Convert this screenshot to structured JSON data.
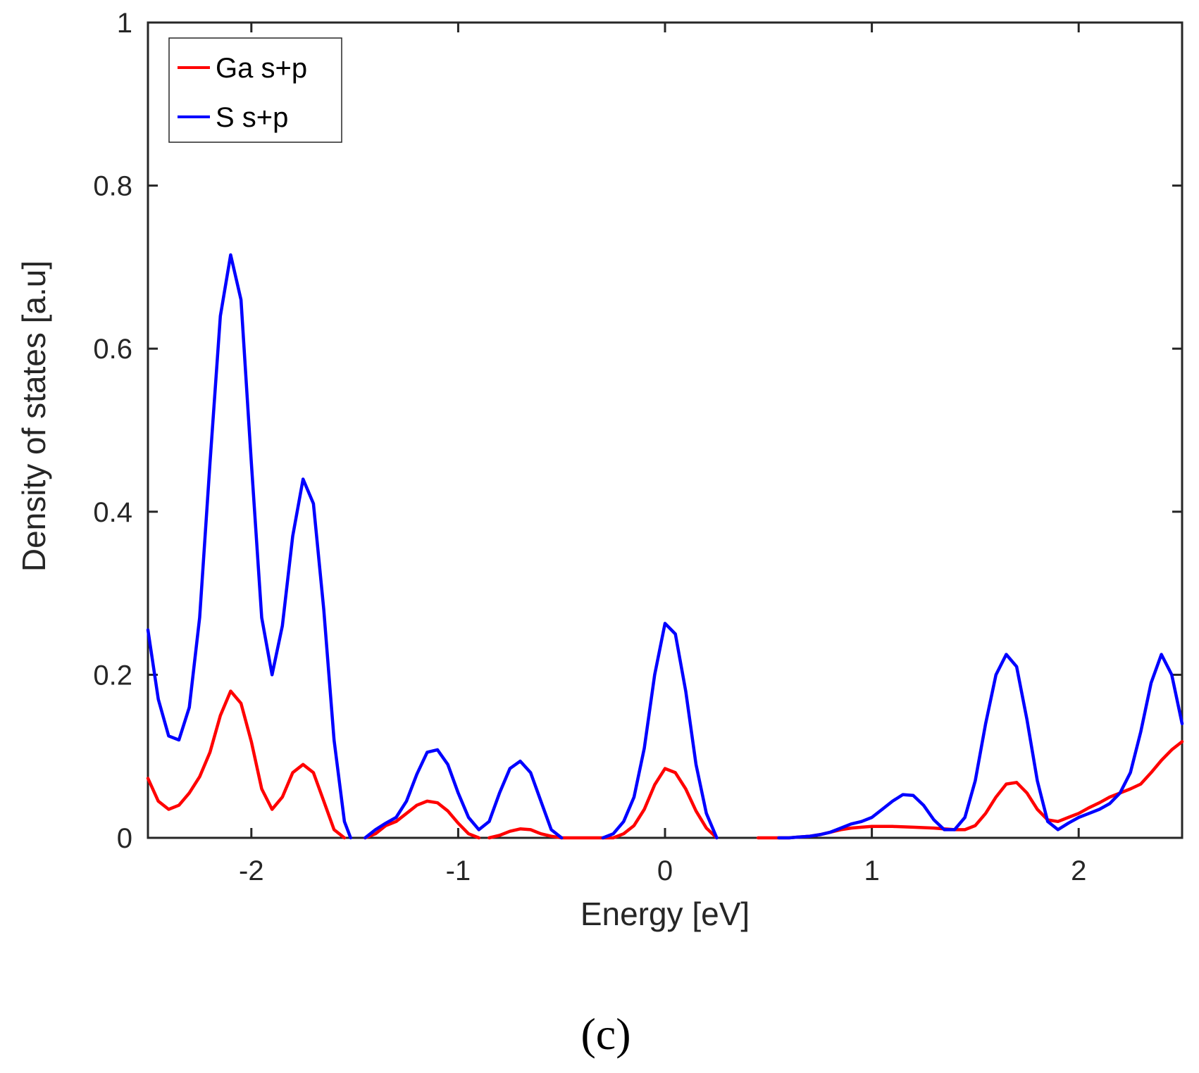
{
  "chart_data": {
    "type": "line",
    "xlabel": "Energy [eV]",
    "ylabel": "Density of states [a.u]",
    "xlim": [
      -2.5,
      2.5
    ],
    "ylim": [
      0,
      1
    ],
    "x_ticks": [
      -2,
      -1,
      0,
      1,
      2
    ],
    "x_tick_labels": [
      "-2",
      "-1",
      "0",
      "1",
      "2"
    ],
    "y_ticks": [
      0,
      0.2,
      0.4,
      0.6,
      0.8,
      1
    ],
    "y_tick_labels": [
      "0",
      "0.2",
      "0.4",
      "0.6",
      "0.8",
      "1"
    ],
    "grid": false,
    "legend_position": "top-left",
    "series": [
      {
        "name": "Ga s+p",
        "color": "#ff0000",
        "points": [
          [
            -2.5,
            0.073
          ],
          [
            -2.45,
            0.045
          ],
          [
            -2.4,
            0.035
          ],
          [
            -2.35,
            0.04
          ],
          [
            -2.3,
            0.055
          ],
          [
            -2.25,
            0.075
          ],
          [
            -2.2,
            0.105
          ],
          [
            -2.15,
            0.15
          ],
          [
            -2.1,
            0.18
          ],
          [
            -2.05,
            0.165
          ],
          [
            -2.0,
            0.118
          ],
          [
            -1.95,
            0.06
          ],
          [
            -1.9,
            0.035
          ],
          [
            -1.85,
            0.05
          ],
          [
            -1.8,
            0.08
          ],
          [
            -1.75,
            0.09
          ],
          [
            -1.7,
            0.08
          ],
          [
            -1.65,
            0.045
          ],
          [
            -1.6,
            0.01
          ],
          [
            -1.55,
            0.0
          ],
          null,
          [
            -1.45,
            0.0
          ],
          [
            -1.4,
            0.005
          ],
          [
            -1.35,
            0.015
          ],
          [
            -1.3,
            0.02
          ],
          [
            -1.25,
            0.03
          ],
          [
            -1.2,
            0.04
          ],
          [
            -1.15,
            0.045
          ],
          [
            -1.1,
            0.043
          ],
          [
            -1.05,
            0.033
          ],
          [
            -1.0,
            0.018
          ],
          [
            -0.95,
            0.005
          ],
          [
            -0.9,
            0.0
          ],
          null,
          [
            -0.85,
            0.0
          ],
          [
            -0.8,
            0.003
          ],
          [
            -0.75,
            0.008
          ],
          [
            -0.7,
            0.011
          ],
          [
            -0.65,
            0.01
          ],
          [
            -0.6,
            0.005
          ],
          [
            -0.55,
            0.002
          ],
          [
            -0.5,
            0.0
          ],
          [
            -0.45,
            0.0
          ],
          [
            -0.4,
            0.0
          ],
          [
            -0.35,
            0.0
          ],
          [
            -0.3,
            0.0
          ],
          [
            -0.25,
            0.0
          ],
          [
            -0.2,
            0.005
          ],
          [
            -0.15,
            0.015
          ],
          [
            -0.1,
            0.035
          ],
          [
            -0.05,
            0.065
          ],
          [
            0.0,
            0.085
          ],
          [
            0.05,
            0.08
          ],
          [
            0.1,
            0.06
          ],
          [
            0.15,
            0.033
          ],
          [
            0.2,
            0.012
          ],
          [
            0.25,
            0.0
          ],
          null,
          [
            0.45,
            0.0
          ],
          [
            0.5,
            0.0
          ],
          [
            0.55,
            0.0
          ],
          [
            0.6,
            0.0
          ],
          [
            0.65,
            0.001
          ],
          [
            0.7,
            0.002
          ],
          [
            0.75,
            0.004
          ],
          [
            0.8,
            0.007
          ],
          [
            0.85,
            0.01
          ],
          [
            0.9,
            0.012
          ],
          [
            0.95,
            0.013
          ],
          [
            1.0,
            0.014
          ],
          [
            1.1,
            0.014
          ],
          [
            1.2,
            0.013
          ],
          [
            1.3,
            0.012
          ],
          [
            1.4,
            0.01
          ],
          [
            1.45,
            0.01
          ],
          [
            1.5,
            0.015
          ],
          [
            1.55,
            0.03
          ],
          [
            1.6,
            0.05
          ],
          [
            1.65,
            0.066
          ],
          [
            1.7,
            0.068
          ],
          [
            1.75,
            0.055
          ],
          [
            1.8,
            0.035
          ],
          [
            1.85,
            0.022
          ],
          [
            1.9,
            0.02
          ],
          [
            1.95,
            0.025
          ],
          [
            2.0,
            0.03
          ],
          [
            2.05,
            0.037
          ],
          [
            2.1,
            0.043
          ],
          [
            2.15,
            0.05
          ],
          [
            2.2,
            0.055
          ],
          [
            2.25,
            0.06
          ],
          [
            2.3,
            0.066
          ],
          [
            2.35,
            0.08
          ],
          [
            2.4,
            0.095
          ],
          [
            2.45,
            0.108
          ],
          [
            2.5,
            0.118
          ]
        ]
      },
      {
        "name": "S s+p",
        "color": "#0000ff",
        "points": [
          [
            -2.5,
            0.255
          ],
          [
            -2.45,
            0.17
          ],
          [
            -2.4,
            0.125
          ],
          [
            -2.35,
            0.12
          ],
          [
            -2.3,
            0.16
          ],
          [
            -2.25,
            0.27
          ],
          [
            -2.2,
            0.46
          ],
          [
            -2.15,
            0.64
          ],
          [
            -2.1,
            0.715
          ],
          [
            -2.05,
            0.66
          ],
          [
            -2.0,
            0.46
          ],
          [
            -1.95,
            0.27
          ],
          [
            -1.9,
            0.2
          ],
          [
            -1.85,
            0.26
          ],
          [
            -1.8,
            0.37
          ],
          [
            -1.75,
            0.44
          ],
          [
            -1.7,
            0.41
          ],
          [
            -1.65,
            0.28
          ],
          [
            -1.6,
            0.12
          ],
          [
            -1.55,
            0.02
          ],
          [
            -1.52,
            0.0
          ],
          null,
          [
            -1.45,
            0.0
          ],
          [
            -1.4,
            0.01
          ],
          [
            -1.35,
            0.018
          ],
          [
            -1.3,
            0.025
          ],
          [
            -1.25,
            0.045
          ],
          [
            -1.2,
            0.078
          ],
          [
            -1.15,
            0.105
          ],
          [
            -1.1,
            0.108
          ],
          [
            -1.05,
            0.09
          ],
          [
            -1.0,
            0.055
          ],
          [
            -0.95,
            0.025
          ],
          [
            -0.9,
            0.01
          ],
          [
            -0.85,
            0.02
          ],
          [
            -0.8,
            0.055
          ],
          [
            -0.75,
            0.085
          ],
          [
            -0.7,
            0.094
          ],
          [
            -0.65,
            0.08
          ],
          [
            -0.6,
            0.045
          ],
          [
            -0.55,
            0.01
          ],
          [
            -0.5,
            0.0
          ],
          null,
          [
            -0.3,
            0.0
          ],
          [
            -0.25,
            0.005
          ],
          [
            -0.2,
            0.02
          ],
          [
            -0.15,
            0.05
          ],
          [
            -0.1,
            0.11
          ],
          [
            -0.05,
            0.2
          ],
          [
            0.0,
            0.263
          ],
          [
            0.05,
            0.25
          ],
          [
            0.1,
            0.18
          ],
          [
            0.15,
            0.09
          ],
          [
            0.2,
            0.03
          ],
          [
            0.25,
            0.0
          ],
          null,
          [
            0.55,
            0.0
          ],
          [
            0.6,
            0.0
          ],
          [
            0.65,
            0.001
          ],
          [
            0.7,
            0.002
          ],
          [
            0.75,
            0.004
          ],
          [
            0.8,
            0.007
          ],
          [
            0.85,
            0.012
          ],
          [
            0.9,
            0.017
          ],
          [
            0.95,
            0.02
          ],
          [
            1.0,
            0.025
          ],
          [
            1.05,
            0.035
          ],
          [
            1.1,
            0.045
          ],
          [
            1.15,
            0.053
          ],
          [
            1.2,
            0.052
          ],
          [
            1.25,
            0.04
          ],
          [
            1.3,
            0.022
          ],
          [
            1.35,
            0.01
          ],
          [
            1.4,
            0.01
          ],
          [
            1.45,
            0.025
          ],
          [
            1.5,
            0.07
          ],
          [
            1.55,
            0.14
          ],
          [
            1.6,
            0.2
          ],
          [
            1.65,
            0.225
          ],
          [
            1.7,
            0.21
          ],
          [
            1.75,
            0.145
          ],
          [
            1.8,
            0.07
          ],
          [
            1.85,
            0.02
          ],
          [
            1.9,
            0.01
          ],
          [
            1.95,
            0.018
          ],
          [
            2.0,
            0.025
          ],
          [
            2.05,
            0.03
          ],
          [
            2.1,
            0.035
          ],
          [
            2.15,
            0.042
          ],
          [
            2.2,
            0.055
          ],
          [
            2.25,
            0.08
          ],
          [
            2.3,
            0.13
          ],
          [
            2.35,
            0.19
          ],
          [
            2.4,
            0.225
          ],
          [
            2.45,
            0.2
          ],
          [
            2.5,
            0.14
          ]
        ]
      }
    ]
  },
  "caption": "(c)"
}
